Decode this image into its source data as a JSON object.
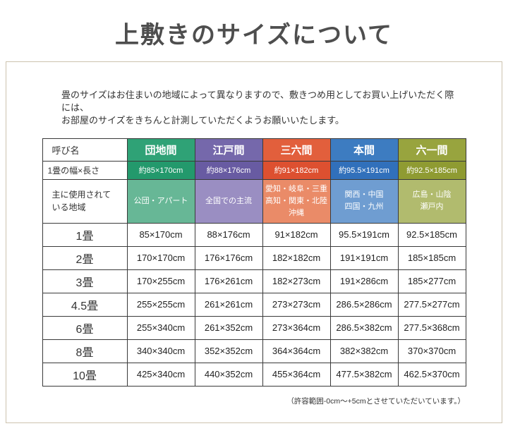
{
  "page": {
    "title": "上敷きのサイズについて",
    "intro_line1": "畳のサイズはお住まいの地域によって異なりますので、敷きつめ用としてお買い上げいただく際には、",
    "intro_line2": "お部屋のサイズをきちんと計測していただくようお願いいたします。",
    "footnote": "（許容範囲-0cm～+5cmとさせていただいています。）"
  },
  "table": {
    "corner_label": "呼び名",
    "width_row_label": "1畳の幅×長さ",
    "region_row_label": "主に使用されている地域",
    "columns": [
      {
        "name": "danchima",
        "label": "団地間",
        "color": "#2fa276",
        "color_dark": "#23996c",
        "color_light": "#67b796",
        "width_length": "約85×170cm",
        "regions": "公団・アパート"
      },
      {
        "name": "edoma",
        "label": "江戸間",
        "color": "#7568ab",
        "color_dark": "#685ba2",
        "color_light": "#9a8ec2",
        "width_length": "約88×176cm",
        "regions": "全国での主流"
      },
      {
        "name": "sanrokuma",
        "label": "三六間",
        "color": "#e25f3c",
        "color_dark": "#dd5030",
        "color_light": "#ea8b68",
        "width_length": "約91×182cm",
        "regions": "愛知・岐阜・三重\n高知・関東・北陸\n沖縄"
      },
      {
        "name": "honma",
        "label": "本間",
        "color": "#3d7cc1",
        "color_dark": "#3170bb",
        "color_light": "#6f9dd1",
        "width_length": "約95.5×191cm",
        "regions": "関西・中国\n四国・九州"
      },
      {
        "name": "rokuichima",
        "label": "六一間",
        "color": "#98a43e",
        "color_dark": "#8f9b32",
        "color_light": "#b1bb6e",
        "width_length": "約92.5×185cm",
        "regions": "広島・山陰\n瀬戸内"
      }
    ],
    "size_rows": [
      {
        "label": "1畳",
        "values": [
          "85×170cm",
          "88×176cm",
          "91×182cm",
          "95.5×191cm",
          "92.5×185cm"
        ]
      },
      {
        "label": "2畳",
        "values": [
          "170×170cm",
          "176×176cm",
          "182×182cm",
          "191×191cm",
          "185×185cm"
        ]
      },
      {
        "label": "3畳",
        "values": [
          "170×255cm",
          "176×261cm",
          "182×273cm",
          "191×286cm",
          "185×277cm"
        ]
      },
      {
        "label": "4.5畳",
        "values": [
          "255×255cm",
          "261×261cm",
          "273×273cm",
          "286.5×286cm",
          "277.5×277cm"
        ]
      },
      {
        "label": "6畳",
        "values": [
          "255×340cm",
          "261×352cm",
          "273×364cm",
          "286.5×382cm",
          "277.5×368cm"
        ]
      },
      {
        "label": "8畳",
        "values": [
          "340×340cm",
          "352×352cm",
          "364×364cm",
          "382×382cm",
          "370×370cm"
        ]
      },
      {
        "label": "10畳",
        "values": [
          "425×340cm",
          "440×352cm",
          "455×364cm",
          "477.5×382cm",
          "462.5×370cm"
        ]
      }
    ]
  }
}
